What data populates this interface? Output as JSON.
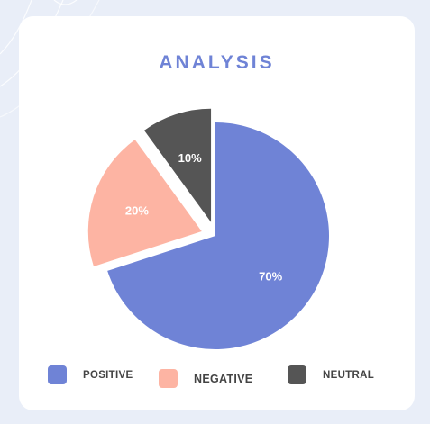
{
  "card": {
    "title": "ANALYSIS"
  },
  "colors": {
    "background": "#e9eef8",
    "card": "#ffffff",
    "title": "#6f83d6"
  },
  "chart_data": {
    "type": "pie",
    "title": "ANALYSIS",
    "categories": [
      "POSITIVE",
      "NEGATIVE",
      "NEUTRAL"
    ],
    "values": [
      70,
      20,
      10
    ],
    "labels": [
      "70%",
      "20%",
      "10%"
    ],
    "colors": [
      "#6f83d6",
      "#fdb4a3",
      "#555555"
    ],
    "legend_position": "bottom",
    "exploded": true
  }
}
